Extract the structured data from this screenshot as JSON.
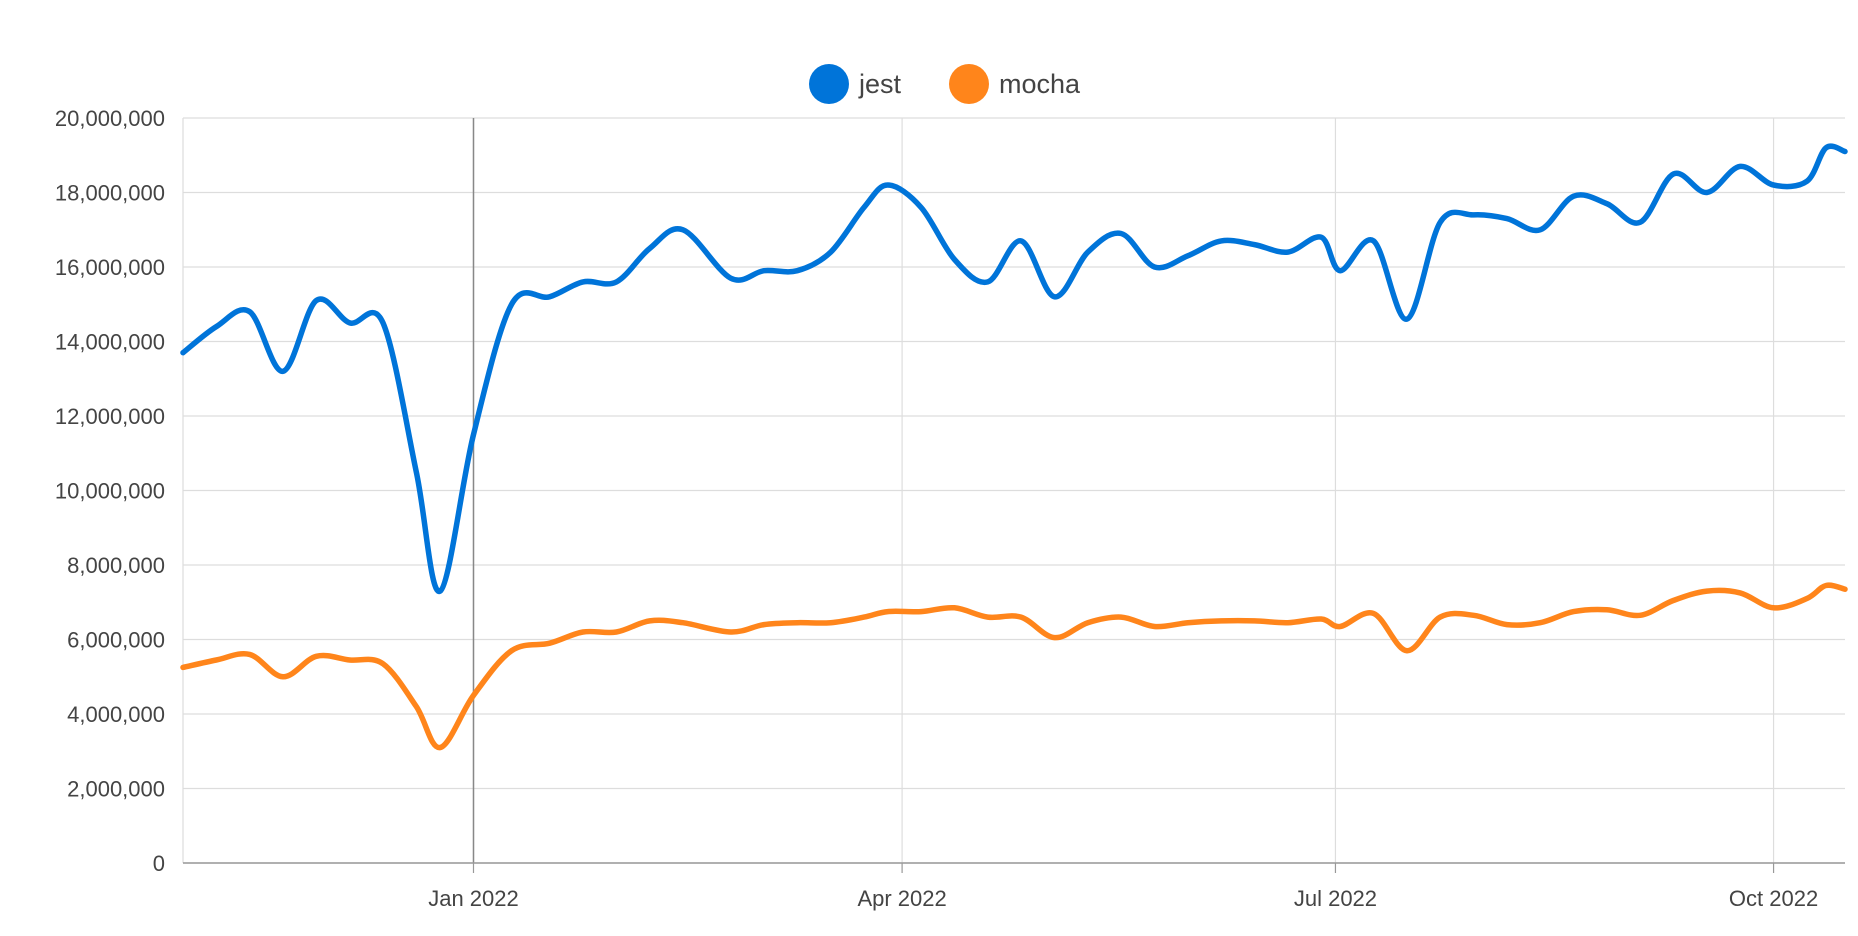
{
  "chart_data": {
    "type": "line",
    "title": "",
    "xlabel": "",
    "ylabel": "",
    "x_range": [
      "2021-11-01",
      "2022-10-16"
    ],
    "x_tick_labels": [
      {
        "date": "2022-01-01",
        "label": "Jan 2022"
      },
      {
        "date": "2022-04-01",
        "label": "Apr 2022"
      },
      {
        "date": "2022-07-01",
        "label": "Jul 2022"
      },
      {
        "date": "2022-10-01",
        "label": "Oct 2022"
      }
    ],
    "ylim": [
      0,
      20000000
    ],
    "y_tick_labels": [
      "0",
      "2,000,000",
      "4,000,000",
      "6,000,000",
      "8,000,000",
      "10,000,000",
      "12,000,000",
      "14,000,000",
      "16,000,000",
      "18,000,000",
      "20,000,000"
    ],
    "y_tick_values": [
      0,
      2000000,
      4000000,
      6000000,
      8000000,
      10000000,
      12000000,
      14000000,
      16000000,
      18000000,
      20000000
    ],
    "grid": true,
    "legend_position": "top-center",
    "cursor_date": "2022-01-01",
    "series": [
      {
        "name": "jest",
        "color": "#0074d9",
        "points": [
          [
            "2021-11-01",
            13700000
          ],
          [
            "2021-11-08",
            14400000
          ],
          [
            "2021-11-15",
            14800000
          ],
          [
            "2021-11-22",
            13200000
          ],
          [
            "2021-11-29",
            15100000
          ],
          [
            "2021-12-06",
            14500000
          ],
          [
            "2021-12-13",
            14500000
          ],
          [
            "2021-12-20",
            10500000
          ],
          [
            "2021-12-25",
            7300000
          ],
          [
            "2022-01-01",
            11500000
          ],
          [
            "2022-01-09",
            15000000
          ],
          [
            "2022-01-17",
            15200000
          ],
          [
            "2022-01-24",
            15600000
          ],
          [
            "2022-01-31",
            15600000
          ],
          [
            "2022-02-07",
            16500000
          ],
          [
            "2022-02-14",
            17000000
          ],
          [
            "2022-02-24",
            15700000
          ],
          [
            "2022-03-03",
            15900000
          ],
          [
            "2022-03-10",
            15900000
          ],
          [
            "2022-03-17",
            16400000
          ],
          [
            "2022-03-24",
            17600000
          ],
          [
            "2022-03-29",
            18200000
          ],
          [
            "2022-04-05",
            17600000
          ],
          [
            "2022-04-12",
            16200000
          ],
          [
            "2022-04-19",
            15600000
          ],
          [
            "2022-04-26",
            16700000
          ],
          [
            "2022-05-03",
            15200000
          ],
          [
            "2022-05-10",
            16400000
          ],
          [
            "2022-05-17",
            16900000
          ],
          [
            "2022-05-24",
            16000000
          ],
          [
            "2022-05-31",
            16300000
          ],
          [
            "2022-06-07",
            16700000
          ],
          [
            "2022-06-14",
            16600000
          ],
          [
            "2022-06-21",
            16400000
          ],
          [
            "2022-06-28",
            16800000
          ],
          [
            "2022-07-02",
            15900000
          ],
          [
            "2022-07-09",
            16700000
          ],
          [
            "2022-07-16",
            14600000
          ],
          [
            "2022-07-23",
            17200000
          ],
          [
            "2022-07-30",
            17400000
          ],
          [
            "2022-08-06",
            17300000
          ],
          [
            "2022-08-13",
            17000000
          ],
          [
            "2022-08-20",
            17900000
          ],
          [
            "2022-08-27",
            17700000
          ],
          [
            "2022-09-03",
            17200000
          ],
          [
            "2022-09-10",
            18500000
          ],
          [
            "2022-09-17",
            18000000
          ],
          [
            "2022-09-24",
            18700000
          ],
          [
            "2022-10-01",
            18200000
          ],
          [
            "2022-10-08",
            18300000
          ],
          [
            "2022-10-12",
            19200000
          ],
          [
            "2022-10-16",
            19100000
          ]
        ]
      },
      {
        "name": "mocha",
        "color": "#ff851b",
        "points": [
          [
            "2021-11-01",
            5250000
          ],
          [
            "2021-11-08",
            5450000
          ],
          [
            "2021-11-15",
            5600000
          ],
          [
            "2021-11-22",
            5000000
          ],
          [
            "2021-11-29",
            5550000
          ],
          [
            "2021-12-06",
            5450000
          ],
          [
            "2021-12-13",
            5350000
          ],
          [
            "2021-12-20",
            4200000
          ],
          [
            "2021-12-25",
            3100000
          ],
          [
            "2022-01-01",
            4500000
          ],
          [
            "2022-01-09",
            5700000
          ],
          [
            "2022-01-17",
            5900000
          ],
          [
            "2022-01-24",
            6200000
          ],
          [
            "2022-01-31",
            6200000
          ],
          [
            "2022-02-07",
            6500000
          ],
          [
            "2022-02-14",
            6450000
          ],
          [
            "2022-02-24",
            6200000
          ],
          [
            "2022-03-03",
            6400000
          ],
          [
            "2022-03-10",
            6450000
          ],
          [
            "2022-03-17",
            6450000
          ],
          [
            "2022-03-24",
            6600000
          ],
          [
            "2022-03-29",
            6750000
          ],
          [
            "2022-04-05",
            6750000
          ],
          [
            "2022-04-12",
            6850000
          ],
          [
            "2022-04-19",
            6600000
          ],
          [
            "2022-04-26",
            6600000
          ],
          [
            "2022-05-03",
            6050000
          ],
          [
            "2022-05-10",
            6450000
          ],
          [
            "2022-05-17",
            6600000
          ],
          [
            "2022-05-24",
            6350000
          ],
          [
            "2022-05-31",
            6450000
          ],
          [
            "2022-06-07",
            6500000
          ],
          [
            "2022-06-14",
            6500000
          ],
          [
            "2022-06-21",
            6450000
          ],
          [
            "2022-06-28",
            6550000
          ],
          [
            "2022-07-02",
            6350000
          ],
          [
            "2022-07-09",
            6700000
          ],
          [
            "2022-07-16",
            5700000
          ],
          [
            "2022-07-23",
            6600000
          ],
          [
            "2022-07-30",
            6650000
          ],
          [
            "2022-08-06",
            6400000
          ],
          [
            "2022-08-13",
            6450000
          ],
          [
            "2022-08-20",
            6750000
          ],
          [
            "2022-08-27",
            6800000
          ],
          [
            "2022-09-03",
            6650000
          ],
          [
            "2022-09-10",
            7050000
          ],
          [
            "2022-09-17",
            7300000
          ],
          [
            "2022-09-24",
            7250000
          ],
          [
            "2022-10-01",
            6850000
          ],
          [
            "2022-10-08",
            7100000
          ],
          [
            "2022-10-12",
            7450000
          ],
          [
            "2022-10-16",
            7350000
          ]
        ]
      }
    ]
  }
}
